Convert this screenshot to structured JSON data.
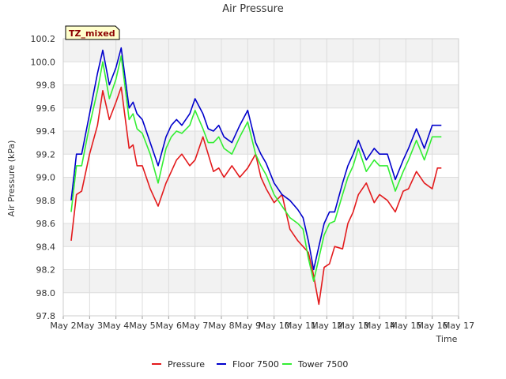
{
  "chart_data": {
    "type": "line",
    "title": "Air Pressure",
    "xlabel": "Time",
    "ylabel": "Air Pressure (kPa)",
    "badge": "TZ_mixed",
    "ylim": [
      97.8,
      100.2
    ],
    "yticks": [
      "97.8",
      "98.0",
      "98.2",
      "98.4",
      "98.6",
      "98.8",
      "99.0",
      "99.2",
      "99.4",
      "99.6",
      "99.8",
      "100.0",
      "100.2"
    ],
    "xlim": [
      2,
      17
    ],
    "xticks": [
      "May 2",
      "May 3",
      "May 4",
      "May 5",
      "May 6",
      "May 7",
      "May 8",
      "May 9",
      "May 10",
      "May 11",
      "May 12",
      "May 13",
      "May 14",
      "May 15",
      "May 16",
      "May 17"
    ],
    "grid": true,
    "legend_position": "bottom-center",
    "x": [
      2.3,
      2.5,
      2.7,
      3.0,
      3.3,
      3.5,
      3.75,
      4.0,
      4.2,
      4.5,
      4.65,
      4.8,
      5.0,
      5.3,
      5.6,
      5.9,
      6.1,
      6.3,
      6.5,
      6.8,
      7.0,
      7.3,
      7.5,
      7.7,
      7.9,
      8.1,
      8.4,
      8.7,
      9.0,
      9.3,
      9.5,
      9.7,
      10.0,
      10.3,
      10.6,
      10.9,
      11.1,
      11.3,
      11.5,
      11.7,
      11.9,
      12.1,
      12.3,
      12.6,
      12.8,
      13.0,
      13.2,
      13.5,
      13.8,
      14.0,
      14.3,
      14.6,
      14.9,
      15.1,
      15.4,
      15.7,
      16.0,
      16.2,
      16.35
    ],
    "series": [
      {
        "name": "Pressure",
        "color": "#e31a1c",
        "values": [
          98.45,
          98.85,
          98.88,
          99.2,
          99.45,
          99.75,
          99.5,
          99.65,
          99.78,
          99.25,
          99.28,
          99.1,
          99.1,
          98.9,
          98.75,
          98.95,
          99.05,
          99.15,
          99.2,
          99.1,
          99.15,
          99.35,
          99.2,
          99.05,
          99.08,
          99.0,
          99.1,
          99.0,
          99.08,
          99.2,
          99.0,
          98.9,
          98.78,
          98.85,
          98.55,
          98.45,
          98.4,
          98.35,
          98.15,
          97.9,
          98.22,
          98.25,
          98.4,
          98.38,
          98.6,
          98.7,
          98.85,
          98.95,
          98.78,
          98.85,
          98.8,
          98.7,
          98.88,
          98.9,
          99.05,
          98.95,
          98.9,
          99.08,
          99.08
        ]
      },
      {
        "name": "Floor 7500",
        "color": "#0000cc",
        "values": [
          98.8,
          99.2,
          99.2,
          99.55,
          99.9,
          100.1,
          99.8,
          99.95,
          100.12,
          99.6,
          99.65,
          99.55,
          99.5,
          99.3,
          99.1,
          99.35,
          99.45,
          99.5,
          99.45,
          99.55,
          99.68,
          99.55,
          99.42,
          99.4,
          99.45,
          99.35,
          99.3,
          99.45,
          99.58,
          99.3,
          99.2,
          99.12,
          98.95,
          98.85,
          98.8,
          98.72,
          98.65,
          98.45,
          98.2,
          98.4,
          98.6,
          98.7,
          98.7,
          98.95,
          99.1,
          99.2,
          99.32,
          99.15,
          99.25,
          99.2,
          99.2,
          98.98,
          99.15,
          99.25,
          99.42,
          99.25,
          99.45,
          99.45,
          99.45
        ]
      },
      {
        "name": "Tower 7500",
        "color": "#33ee33",
        "values": [
          98.7,
          99.1,
          99.1,
          99.45,
          99.75,
          100.0,
          99.68,
          99.85,
          100.05,
          99.5,
          99.55,
          99.42,
          99.38,
          99.2,
          98.95,
          99.25,
          99.35,
          99.4,
          99.38,
          99.45,
          99.58,
          99.42,
          99.3,
          99.3,
          99.35,
          99.25,
          99.2,
          99.35,
          99.48,
          99.2,
          99.1,
          99.02,
          98.85,
          98.75,
          98.65,
          98.6,
          98.55,
          98.3,
          98.1,
          98.3,
          98.5,
          98.6,
          98.62,
          98.85,
          99.0,
          99.1,
          99.25,
          99.05,
          99.15,
          99.1,
          99.1,
          98.88,
          99.05,
          99.15,
          99.32,
          99.15,
          99.35,
          99.35,
          99.35
        ]
      }
    ]
  }
}
